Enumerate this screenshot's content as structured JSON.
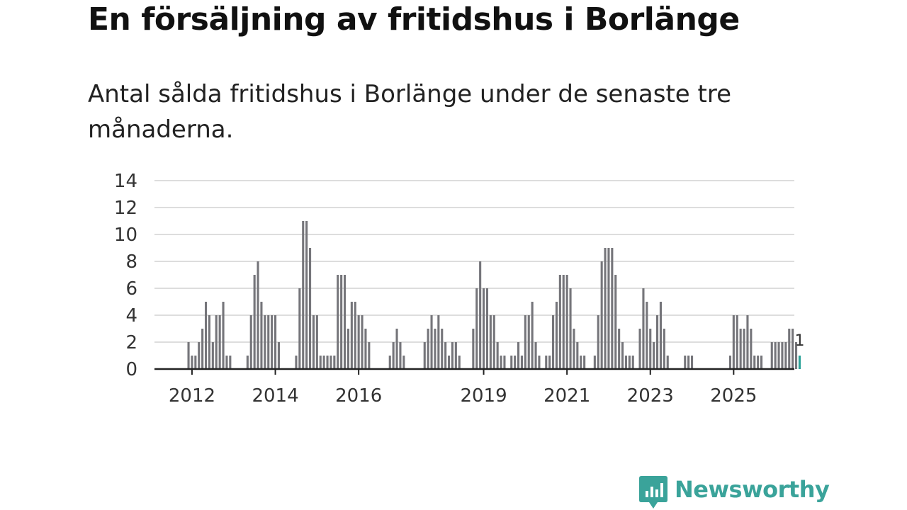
{
  "title": "En försäljning av fritidshus i Borlänge",
  "subtitle": "Antal sålda fritidshus i Borlänge under de senaste tre månaderna.",
  "brand": {
    "name": "Newsworthy",
    "color": "#3aa39a",
    "icon": "chart-bubble-icon"
  },
  "colors": {
    "bar": "#75757a",
    "highlight": "#2aa198",
    "grid": "#dddddd",
    "axis": "#222222"
  },
  "chart_data": {
    "type": "bar",
    "title": "En försäljning av fritidshus i Borlänge",
    "xlabel": "",
    "ylabel": "",
    "ylim": [
      0,
      14
    ],
    "yticks": [
      "0",
      "2",
      "4",
      "6",
      "8",
      "10",
      "12",
      "14"
    ],
    "xticks": [
      "2012",
      "2014",
      "2016",
      "2019",
      "2021",
      "2023",
      "2025"
    ],
    "x_start": "2011-11",
    "values": [
      0,
      2,
      1,
      1,
      2,
      3,
      5,
      4,
      2,
      4,
      4,
      5,
      1,
      1,
      0,
      0,
      0,
      0,
      1,
      4,
      7,
      8,
      5,
      4,
      4,
      4,
      4,
      2,
      0,
      0,
      0,
      0,
      1,
      6,
      11,
      11,
      9,
      4,
      4,
      1,
      1,
      1,
      1,
      1,
      7,
      7,
      7,
      3,
      5,
      5,
      4,
      4,
      3,
      2,
      0,
      0,
      0,
      0,
      0,
      1,
      2,
      3,
      2,
      1,
      0,
      0,
      0,
      0,
      0,
      2,
      3,
      4,
      3,
      4,
      3,
      2,
      1,
      2,
      2,
      1,
      0,
      0,
      0,
      3,
      6,
      8,
      6,
      6,
      4,
      4,
      2,
      1,
      1,
      0,
      1,
      1,
      2,
      1,
      4,
      4,
      5,
      2,
      1,
      0,
      1,
      1,
      4,
      5,
      7,
      7,
      7,
      6,
      3,
      2,
      1,
      1,
      0,
      0,
      1,
      4,
      8,
      9,
      9,
      9,
      7,
      3,
      2,
      1,
      1,
      1,
      0,
      3,
      6,
      5,
      3,
      2,
      4,
      5,
      3,
      1,
      0,
      0,
      0,
      0,
      1,
      1,
      1,
      0,
      0,
      0,
      0,
      0,
      0,
      0,
      0,
      0,
      0,
      1,
      4,
      4,
      3,
      3,
      4,
      3,
      1,
      1,
      1,
      0,
      0,
      2,
      2,
      2,
      2,
      2,
      3,
      3,
      2,
      1
    ],
    "highlight_last": true,
    "annotation": "1"
  }
}
